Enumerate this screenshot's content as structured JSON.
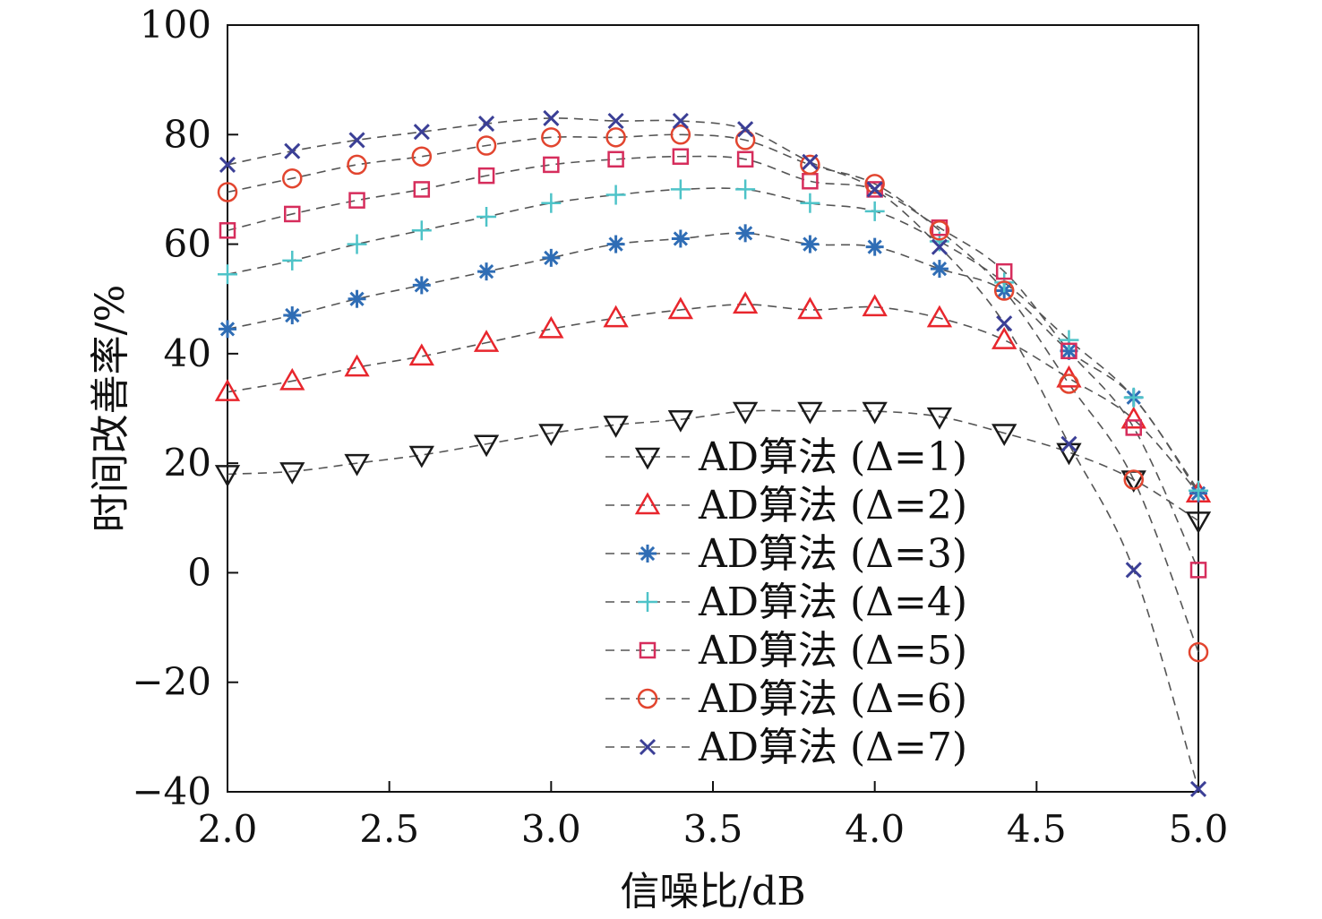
{
  "chart_data": {
    "type": "line",
    "xlabel": "信噪比/dB",
    "ylabel": "时间改善率/%",
    "xlim": [
      2.0,
      5.0
    ],
    "ylim": [
      -40,
      100
    ],
    "x_ticks": [
      "2.0",
      "2.5",
      "3.0",
      "3.5",
      "4.0",
      "4.5",
      "5.0"
    ],
    "y_ticks": [
      "−40",
      "−20",
      "0",
      "20",
      "40",
      "60",
      "80",
      "100"
    ],
    "grid": false,
    "legend_position": "lower-center",
    "x": [
      2.0,
      2.2,
      2.4,
      2.6,
      2.8,
      3.0,
      3.2,
      3.4,
      3.6,
      3.8,
      4.0,
      4.2,
      4.4,
      4.6,
      4.8,
      5.0
    ],
    "series": [
      {
        "name": "AD算法 (Δ=1)",
        "marker": "triangle-down",
        "color": "#1a1a1a",
        "values": [
          18,
          18.5,
          20,
          21.5,
          23.5,
          25.5,
          27,
          28,
          29.5,
          29.5,
          29.5,
          28.5,
          25.5,
          22,
          17,
          9.5
        ]
      },
      {
        "name": "AD算法 (Δ=2)",
        "marker": "triangle-up",
        "color": "#e8262d",
        "values": [
          33,
          35,
          37.5,
          39.5,
          42,
          44.5,
          46.5,
          48,
          49,
          48,
          48.5,
          46.5,
          42.5,
          35.5,
          28,
          14.5
        ]
      },
      {
        "name": "AD算法 (Δ=3)",
        "marker": "asterisk",
        "color": "#2f6db5",
        "values": [
          44.5,
          47,
          50,
          52.5,
          55,
          57.5,
          60,
          61,
          62,
          60,
          59.5,
          55.5,
          51.5,
          40.5,
          32,
          14.5
        ]
      },
      {
        "name": "AD算法 (Δ=4)",
        "marker": "plus",
        "color": "#4ec3c8",
        "values": [
          54.5,
          57,
          60,
          62.5,
          65,
          67.5,
          69,
          70,
          70,
          67.5,
          66,
          60.5,
          53,
          42.5,
          32,
          15
        ]
      },
      {
        "name": "AD算法 (Δ=5)",
        "marker": "square",
        "color": "#d62d5c",
        "values": [
          62.5,
          65.5,
          68,
          70,
          72.5,
          74.5,
          75.5,
          76,
          75.5,
          71.5,
          70,
          63,
          55,
          40.5,
          26.5,
          0.5
        ]
      },
      {
        "name": "AD算法 (Δ=6)",
        "marker": "circle",
        "color": "#e2452f",
        "values": [
          69.5,
          72,
          74.5,
          76,
          78,
          79.5,
          79.5,
          80,
          79,
          74.5,
          71,
          62.5,
          51.5,
          34.5,
          17,
          -14.5
        ]
      },
      {
        "name": "AD算法 (Δ=7)",
        "marker": "x",
        "color": "#3b3f96",
        "values": [
          74.5,
          77,
          79,
          80.5,
          82,
          83,
          82.5,
          82.5,
          81,
          75,
          70,
          59.5,
          45.5,
          23.5,
          0.5,
          -39.5
        ]
      }
    ]
  }
}
